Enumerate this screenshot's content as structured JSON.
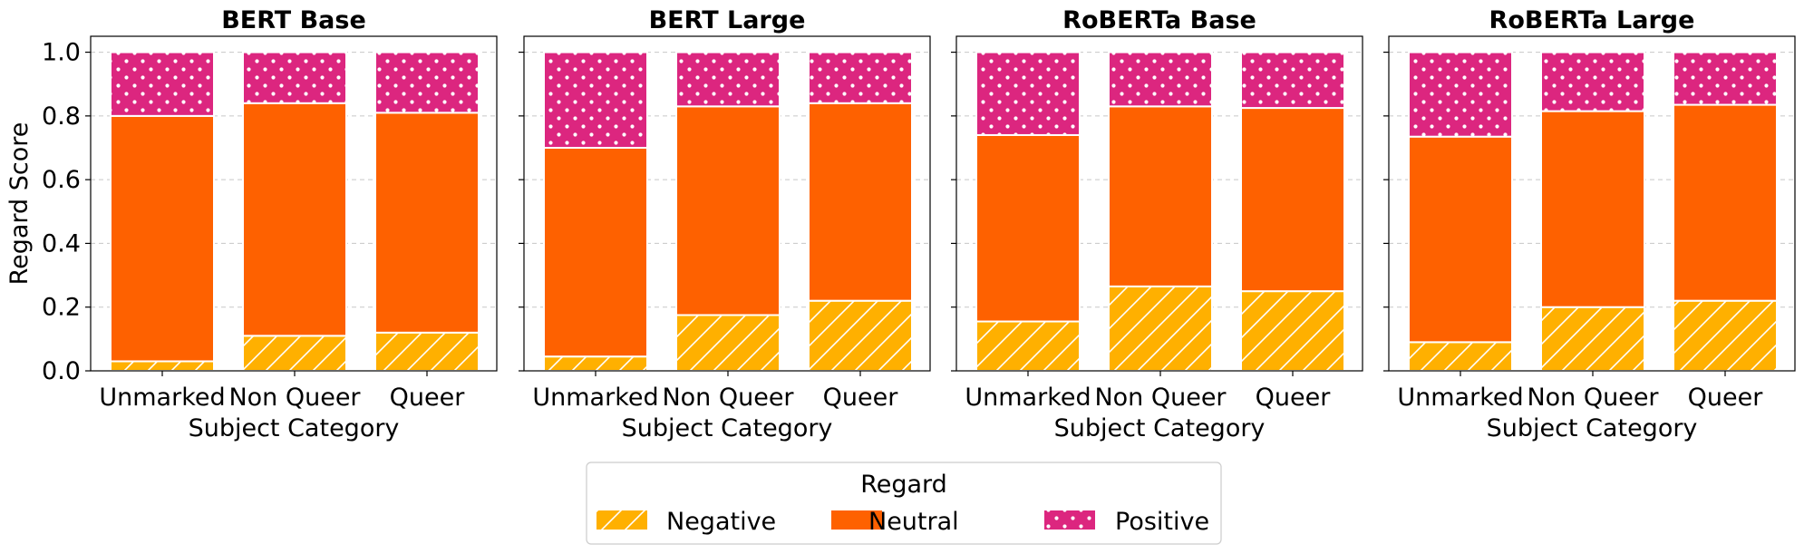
{
  "chart_data": [
    {
      "type": "bar",
      "stacked": true,
      "title": "BERT Base",
      "xlabel": "Subject Category",
      "ylabel": "Regard Score",
      "categories": [
        "Unmarked",
        "Non Queer",
        "Queer"
      ],
      "ylim": [
        0,
        1.05
      ],
      "yticks": [
        "0.0",
        "0.2",
        "0.4",
        "0.6",
        "0.8",
        "1.0"
      ],
      "grid": "y-dashed",
      "series": [
        {
          "name": "Negative",
          "values": [
            0.03,
            0.11,
            0.12
          ]
        },
        {
          "name": "Neutral",
          "values": [
            0.77,
            0.73,
            0.69
          ]
        },
        {
          "name": "Positive",
          "values": [
            0.2,
            0.16,
            0.19
          ]
        }
      ]
    },
    {
      "type": "bar",
      "stacked": true,
      "title": "BERT Large",
      "xlabel": "Subject Category",
      "ylabel": "",
      "categories": [
        "Unmarked",
        "Non Queer",
        "Queer"
      ],
      "ylim": [
        0,
        1.05
      ],
      "yticks": [
        "",
        "",
        "",
        "",
        "",
        ""
      ],
      "grid": "y-dashed",
      "series": [
        {
          "name": "Negative",
          "values": [
            0.045,
            0.175,
            0.22
          ]
        },
        {
          "name": "Neutral",
          "values": [
            0.655,
            0.655,
            0.62
          ]
        },
        {
          "name": "Positive",
          "values": [
            0.3,
            0.17,
            0.16
          ]
        }
      ]
    },
    {
      "type": "bar",
      "stacked": true,
      "title": "RoBERTa Base",
      "xlabel": "Subject Category",
      "ylabel": "",
      "categories": [
        "Unmarked",
        "Non Queer",
        "Queer"
      ],
      "ylim": [
        0,
        1.05
      ],
      "yticks": [
        "",
        "",
        "",
        "",
        "",
        ""
      ],
      "grid": "y-dashed",
      "series": [
        {
          "name": "Negative",
          "values": [
            0.155,
            0.265,
            0.25
          ]
        },
        {
          "name": "Neutral",
          "values": [
            0.585,
            0.565,
            0.575
          ]
        },
        {
          "name": "Positive",
          "values": [
            0.26,
            0.17,
            0.175
          ]
        }
      ]
    },
    {
      "type": "bar",
      "stacked": true,
      "title": "RoBERTa Large",
      "xlabel": "Subject Category",
      "ylabel": "",
      "categories": [
        "Unmarked",
        "Non Queer",
        "Queer"
      ],
      "ylim": [
        0,
        1.05
      ],
      "yticks": [
        "",
        "",
        "",
        "",
        "",
        ""
      ],
      "grid": "y-dashed",
      "series": [
        {
          "name": "Negative",
          "values": [
            0.09,
            0.2,
            0.22
          ]
        },
        {
          "name": "Neutral",
          "values": [
            0.645,
            0.615,
            0.615
          ]
        },
        {
          "name": "Positive",
          "values": [
            0.265,
            0.185,
            0.165
          ]
        }
      ]
    }
  ],
  "legend": {
    "title": "Regard",
    "placement": "bottom-center",
    "entries": [
      {
        "label": "Negative",
        "color": "#FFB000",
        "pattern": "hatch"
      },
      {
        "label": "Neutral",
        "color": "#FE6100",
        "pattern": "solid"
      },
      {
        "label": "Positive",
        "color": "#DC267F",
        "pattern": "dots"
      }
    ]
  }
}
